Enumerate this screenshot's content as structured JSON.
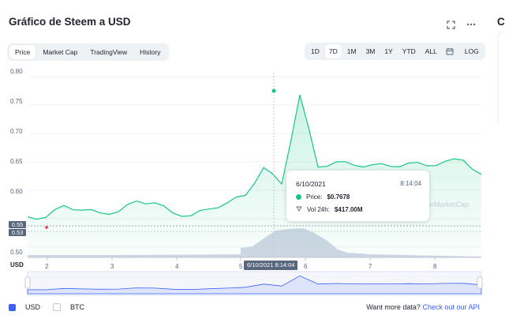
{
  "header": {
    "title": "Gráfico de Steem a USD",
    "side_title": "C"
  },
  "tabs": [
    "Price",
    "Market Cap",
    "TradingView",
    "History"
  ],
  "active_tab": "Price",
  "ranges": [
    "1D",
    "7D",
    "1M",
    "3M",
    "1Y",
    "YTD",
    "ALL"
  ],
  "active_range": "7D",
  "log_label": "LOG",
  "y_ticks": [
    "0.80",
    "0.75",
    "0.70",
    "0.65",
    "0.60",
    "0.55",
    "0.50"
  ],
  "price_badges": [
    "0.55",
    "0.53"
  ],
  "x_ticks": [
    "2",
    "3",
    "4",
    "5",
    "6",
    "7",
    "8"
  ],
  "x_axis_currency": "USD",
  "x_badge": "6/10/2021 8:14:04",
  "tooltip": {
    "date": "6/10/2021",
    "time": "8:14:04",
    "price_label": "Price:",
    "price_value": "$0.7678",
    "vol_label": "Vol 24h:",
    "vol_value": "$417.00M"
  },
  "watermark": "inMarketCap",
  "legend": {
    "usd": "USD",
    "btc": "BTC"
  },
  "api": {
    "text": "Want more data?",
    "link": "Check out our API"
  },
  "colors": {
    "accent": "#3861fb",
    "line": "#16c784",
    "badge": "#58667e"
  },
  "chart_data": {
    "type": "area",
    "x": [
      "6/1/2021",
      "6/1/2021",
      "6/2/2021",
      "6/2/2021",
      "6/2/2021",
      "6/3/2021",
      "6/3/2021",
      "6/3/2021",
      "6/4/2021",
      "6/4/2021",
      "6/4/2021",
      "6/5/2021",
      "6/5/2021",
      "6/5/2021",
      "6/5/2021",
      "6/6/2021",
      "6/6/2021",
      "6/6/2021",
      "6/7/2021",
      "6/7/2021",
      "6/7/2021",
      "6/8/2021",
      "6/8/2021",
      "6/8/2021",
      "6/8/2021",
      "6/8/2021"
    ],
    "values": [
      0.553,
      0.552,
      0.573,
      0.565,
      0.56,
      0.562,
      0.581,
      0.578,
      0.56,
      0.555,
      0.567,
      0.578,
      0.591,
      0.64,
      0.611,
      0.768,
      0.641,
      0.65,
      0.644,
      0.645,
      0.642,
      0.648,
      0.643,
      0.651,
      0.653,
      0.628
    ],
    "ylim": [
      0.49,
      0.81
    ]
  }
}
